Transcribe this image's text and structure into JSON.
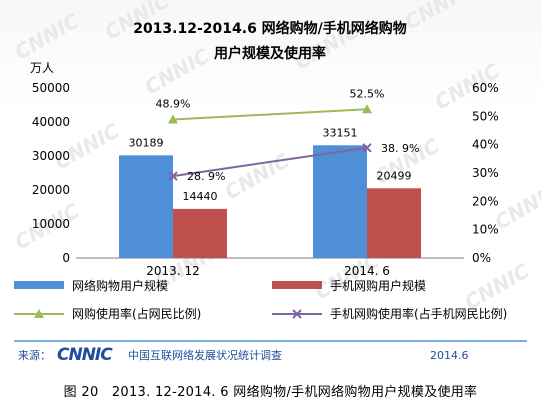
{
  "chart_data": {
    "type": "bar",
    "title_line1": "2013.12-2014.6 网络购物/手机网络购物",
    "title_line2": "用户规模及使用率",
    "y_left_unit": "万人",
    "categories": [
      "2013. 12",
      "2014. 6"
    ],
    "ylim_left": [
      0,
      50000
    ],
    "y_left_ticks": [
      "0",
      "10000",
      "20000",
      "30000",
      "40000",
      "50000"
    ],
    "ylim_right": [
      0,
      60
    ],
    "y_right_ticks": [
      "0%",
      "10%",
      "20%",
      "30%",
      "40%",
      "50%",
      "60%"
    ],
    "bar_series": [
      {
        "name": "网络购物用户规模",
        "values": [
          30189,
          33151
        ],
        "labels": [
          "30189",
          "33151"
        ],
        "color": "#4f8fd8"
      },
      {
        "name": "手机网购用户规模",
        "values": [
          14440,
          20499
        ],
        "labels": [
          "14440",
          "20499"
        ],
        "color": "#c0504d"
      }
    ],
    "line_series": [
      {
        "name": "网购使用率(占网民比例)",
        "values": [
          48.9,
          52.5
        ],
        "labels": [
          "48.9%",
          "52.5%"
        ],
        "color": "#9bbb59",
        "marker": "triangle"
      },
      {
        "name": "手机网购使用率(占手机网民比例)",
        "values": [
          28.9,
          38.9
        ],
        "labels": [
          "28. 9%",
          "38. 9%"
        ],
        "color": "#8064a2",
        "marker": "x"
      }
    ],
    "grid": false
  },
  "source_label": "来源：",
  "source_logo": "CNNIC",
  "source_org": "中国互联网络发展状况统计调查",
  "source_date": "2014.6",
  "caption": "图 20　2013. 12-2014. 6 网络购物/手机网络购物用户规模及使用率"
}
